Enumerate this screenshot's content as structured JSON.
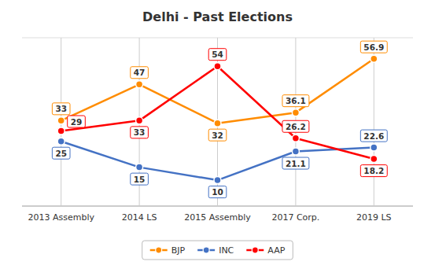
{
  "chart_data": {
    "type": "line",
    "title": "Delhi - Past Elections",
    "categories": [
      "2013 Assembly",
      "2014 LS",
      "2015 Assembly",
      "2017 Corp.",
      "2019 LS"
    ],
    "series": [
      {
        "name": "BJP",
        "color": "#FF8C00",
        "marker": "circle",
        "values": [
          33,
          47,
          32,
          36.1,
          56.9
        ]
      },
      {
        "name": "INC",
        "color": "#4472C4",
        "marker": "circle",
        "values": [
          25,
          15,
          10,
          21.1,
          22.6
        ]
      },
      {
        "name": "AAP",
        "color": "#FF0000",
        "marker": "circle",
        "values": [
          29,
          33,
          54,
          26.2,
          18.2
        ]
      }
    ],
    "ylim": [
      0,
      65
    ],
    "grid": "x",
    "data_labels": true,
    "tick_labels": "x",
    "legend": "bottom"
  }
}
